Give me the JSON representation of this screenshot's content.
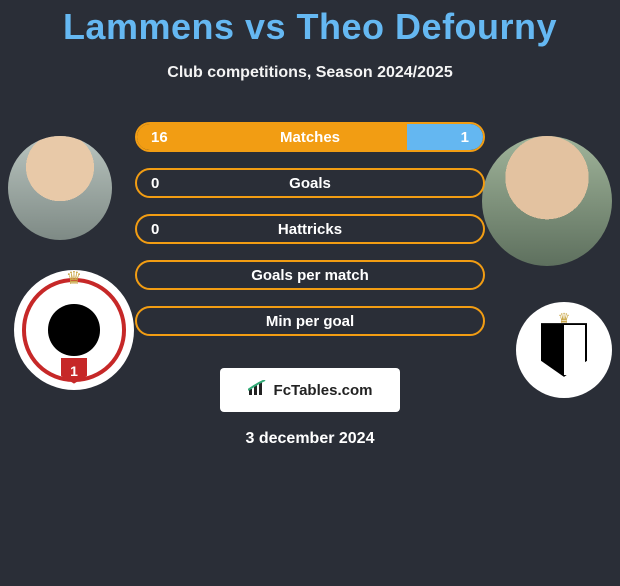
{
  "title": "Lammens vs Theo Defourny",
  "title_color": "#65b8f2",
  "subtitle": "Club competitions, Season 2024/2025",
  "background_color": "#2a2e37",
  "bar_border_color": "#f29d13",
  "left_fill_color": "#f29d13",
  "right_fill_color": "#64b7f1",
  "text_color": "#ffffff",
  "players": {
    "left": {
      "name": "Lammens",
      "team": "Royal Antwerp FC"
    },
    "right": {
      "name": "Theo Defourny",
      "team": "R. Charleroi S.C."
    }
  },
  "bars": [
    {
      "label": "Matches",
      "left": "16",
      "right": "1",
      "left_pct": 78,
      "right_pct": 22
    },
    {
      "label": "Goals",
      "left": "0",
      "right": "",
      "left_pct": 0,
      "right_pct": 0
    },
    {
      "label": "Hattricks",
      "left": "0",
      "right": "",
      "left_pct": 0,
      "right_pct": 0
    },
    {
      "label": "Goals per match",
      "left": "",
      "right": "",
      "left_pct": 0,
      "right_pct": 0
    },
    {
      "label": "Min per goal",
      "left": "",
      "right": "",
      "left_pct": 0,
      "right_pct": 0
    }
  ],
  "watermark": "FcTables.com",
  "date": "3 december 2024",
  "bar_label_fontsize": 15,
  "title_fontsize": 36,
  "subtitle_fontsize": 16
}
